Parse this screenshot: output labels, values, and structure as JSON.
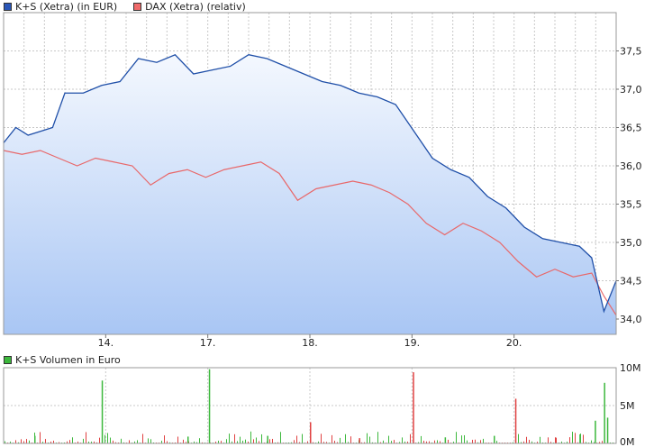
{
  "legend": {
    "series1_label": "K+S (Xetra) (in EUR)",
    "series2_label": "DAX (Xetra) (relativ)",
    "volume_label": "K+S Volumen in Euro"
  },
  "colors": {
    "series1": "#1f4fa8",
    "series2": "#e8686a",
    "series1_swatch": "#2a56b8",
    "series2_swatch": "#f06a6a",
    "volume_up": "#3cb83c",
    "volume_down": "#e04040",
    "grid": "#c8c8c8",
    "area_top": "#f4f8fe",
    "area_bottom": "#a9c6f4"
  },
  "chart_data": [
    {
      "type": "area",
      "x_tick_labels": [
        "14.",
        "17.",
        "18.",
        "19.",
        "20."
      ],
      "y_tick_labels": [
        "34,0",
        "34,5",
        "35,0",
        "35,5",
        "36,0",
        "36,5",
        "37,0",
        "37,5"
      ],
      "ylim": [
        33.8,
        38.0
      ],
      "grid": true,
      "legend_position": "top-left",
      "series": [
        {
          "name": "K+S (Xetra) (in EUR)",
          "style": "line with gradient area fill",
          "points": [
            [
              0.0,
              36.3
            ],
            [
              0.02,
              36.5
            ],
            [
              0.04,
              36.4
            ],
            [
              0.06,
              36.45
            ],
            [
              0.08,
              36.5
            ],
            [
              0.1,
              36.95
            ],
            [
              0.13,
              36.95
            ],
            [
              0.16,
              37.05
            ],
            [
              0.19,
              37.1
            ],
            [
              0.22,
              37.4
            ],
            [
              0.25,
              37.35
            ],
            [
              0.28,
              37.45
            ],
            [
              0.31,
              37.2
            ],
            [
              0.34,
              37.25
            ],
            [
              0.37,
              37.3
            ],
            [
              0.4,
              37.45
            ],
            [
              0.43,
              37.4
            ],
            [
              0.46,
              37.3
            ],
            [
              0.49,
              37.2
            ],
            [
              0.52,
              37.1
            ],
            [
              0.55,
              37.05
            ],
            [
              0.58,
              36.95
            ],
            [
              0.61,
              36.9
            ],
            [
              0.64,
              36.8
            ],
            [
              0.67,
              36.45
            ],
            [
              0.7,
              36.1
            ],
            [
              0.73,
              35.95
            ],
            [
              0.76,
              35.85
            ],
            [
              0.79,
              35.6
            ],
            [
              0.82,
              35.45
            ],
            [
              0.85,
              35.2
            ],
            [
              0.88,
              35.05
            ],
            [
              0.91,
              35.0
            ],
            [
              0.94,
              34.95
            ],
            [
              0.96,
              34.8
            ],
            [
              0.98,
              34.1
            ],
            [
              1.0,
              34.5
            ]
          ]
        },
        {
          "name": "DAX (Xetra) (relativ)",
          "style": "line",
          "points": [
            [
              0.0,
              36.2
            ],
            [
              0.03,
              36.15
            ],
            [
              0.06,
              36.2
            ],
            [
              0.09,
              36.1
            ],
            [
              0.12,
              36.0
            ],
            [
              0.15,
              36.1
            ],
            [
              0.18,
              36.05
            ],
            [
              0.21,
              36.0
            ],
            [
              0.24,
              35.75
            ],
            [
              0.27,
              35.9
            ],
            [
              0.3,
              35.95
            ],
            [
              0.33,
              35.85
            ],
            [
              0.36,
              35.95
            ],
            [
              0.39,
              36.0
            ],
            [
              0.42,
              36.05
            ],
            [
              0.45,
              35.9
            ],
            [
              0.48,
              35.55
            ],
            [
              0.51,
              35.7
            ],
            [
              0.54,
              35.75
            ],
            [
              0.57,
              35.8
            ],
            [
              0.6,
              35.75
            ],
            [
              0.63,
              35.65
            ],
            [
              0.66,
              35.5
            ],
            [
              0.69,
              35.25
            ],
            [
              0.72,
              35.1
            ],
            [
              0.75,
              35.25
            ],
            [
              0.78,
              35.15
            ],
            [
              0.81,
              35.0
            ],
            [
              0.84,
              34.75
            ],
            [
              0.87,
              34.55
            ],
            [
              0.9,
              34.65
            ],
            [
              0.93,
              34.55
            ],
            [
              0.96,
              34.6
            ],
            [
              0.98,
              34.3
            ],
            [
              1.0,
              34.05
            ]
          ]
        }
      ]
    },
    {
      "type": "bar",
      "y_tick_labels": [
        "0M",
        "5M",
        "10M"
      ],
      "ylim": [
        0,
        10
      ],
      "grid": true,
      "series": [
        {
          "name": "K+S Volumen in Euro",
          "spikes": [
            [
              0.05,
              1.0,
              "up"
            ],
            [
              0.16,
              8.3,
              "up"
            ],
            [
              0.3,
              0.9,
              "up"
            ],
            [
              0.335,
              9.8,
              "up"
            ],
            [
              0.43,
              1.0,
              "up"
            ],
            [
              0.5,
              2.8,
              "down"
            ],
            [
              0.58,
              0.7,
              "down"
            ],
            [
              0.668,
              9.4,
              "down"
            ],
            [
              0.72,
              0.8,
              "up"
            ],
            [
              0.8,
              1.0,
              "up"
            ],
            [
              0.835,
              5.9,
              "down"
            ],
            [
              0.9,
              0.8,
              "down"
            ],
            [
              0.94,
              1.2,
              "up"
            ],
            [
              0.965,
              3.0,
              "up"
            ],
            [
              0.98,
              8.0,
              "up"
            ],
            [
              0.985,
              3.4,
              "up"
            ]
          ]
        }
      ]
    }
  ]
}
